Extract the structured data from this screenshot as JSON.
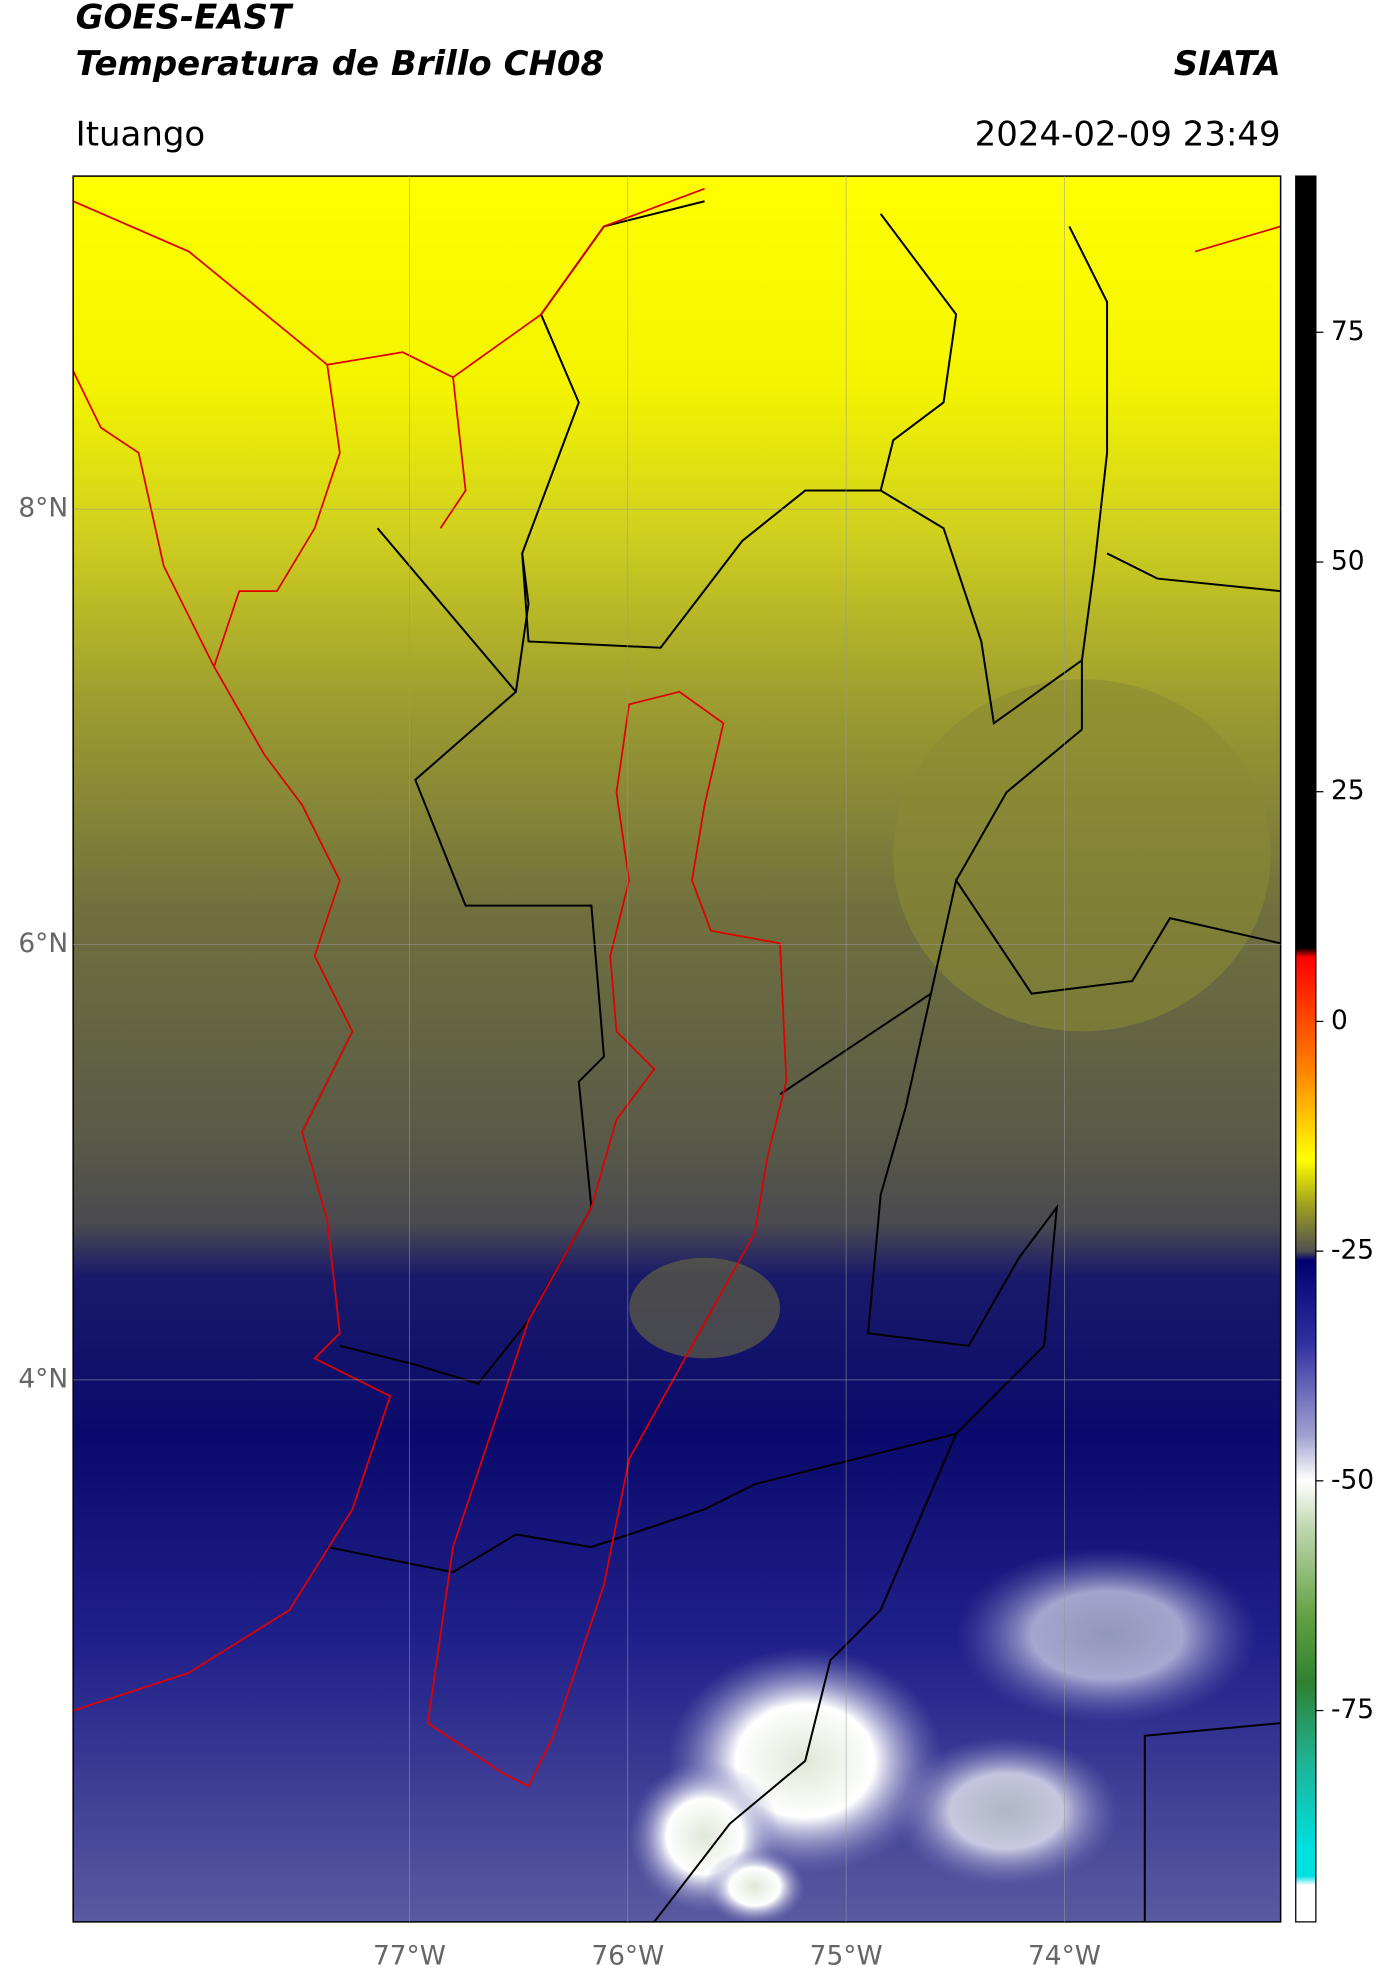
{
  "header": {
    "title": "GOES-EAST",
    "subtitle": "Temperatura de Brillo CH08",
    "source": "SIATA",
    "location": "Ituango",
    "datetime": "2024-02-09 23:49"
  },
  "map": {
    "lon_lim": [
      -78.54,
      -73.01
    ],
    "lat_lim": [
      1.51,
      9.53
    ],
    "lon_ticks": [
      {
        "value": -77,
        "label": "77°W"
      },
      {
        "value": -76,
        "label": "76°W"
      },
      {
        "value": -75,
        "label": "75°W"
      },
      {
        "value": -74,
        "label": "74°W"
      }
    ],
    "lat_ticks": [
      {
        "value": 8,
        "label": "8°N"
      },
      {
        "value": 6,
        "label": "6°N"
      },
      {
        "value": 4,
        "label": "4°N"
      }
    ],
    "grid": true
  },
  "colorbar": {
    "lim": [
      -98,
      92
    ],
    "ticks": [
      75,
      50,
      25,
      0,
      -25,
      -50,
      -75
    ],
    "stops": [
      {
        "value": 92,
        "color": "#000000"
      },
      {
        "value": 8,
        "color": "#000000"
      },
      {
        "value": 7,
        "color": "#ff0000"
      },
      {
        "value": -5,
        "color": "#ff8000"
      },
      {
        "value": -15,
        "color": "#ffff00"
      },
      {
        "value": -20,
        "color": "#a0a020"
      },
      {
        "value": -25,
        "color": "#505050"
      },
      {
        "value": -26,
        "color": "#000070"
      },
      {
        "value": -35,
        "color": "#3030a0"
      },
      {
        "value": -45,
        "color": "#a0a0d0"
      },
      {
        "value": -50,
        "color": "#ffffff"
      },
      {
        "value": -55,
        "color": "#c0d8b0"
      },
      {
        "value": -65,
        "color": "#60a040"
      },
      {
        "value": -72,
        "color": "#308030"
      },
      {
        "value": -80,
        "color": "#20b090"
      },
      {
        "value": -90,
        "color": "#00e0e0"
      },
      {
        "value": -93,
        "color": "#00e0e0"
      },
      {
        "value": -94,
        "color": "#ffffff"
      },
      {
        "value": -98,
        "color": "#ffffff"
      }
    ]
  }
}
